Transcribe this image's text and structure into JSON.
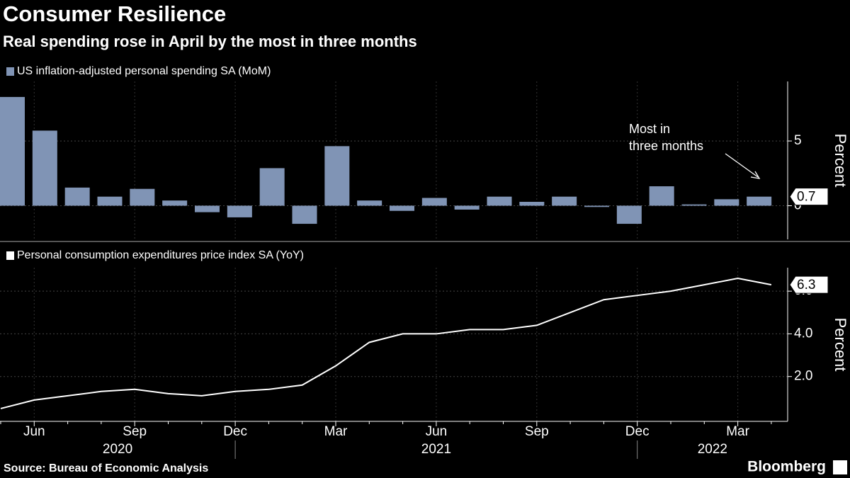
{
  "header": {
    "title": "Consumer Resilience",
    "subtitle": "Real spending rose in April by the most in three months"
  },
  "chart_data": [
    {
      "type": "bar",
      "series": [
        {
          "name": "US inflation-adjusted personal spending SA (MoM)",
          "color": "#8094b5",
          "values": [
            8.4,
            5.8,
            1.4,
            0.7,
            1.3,
            0.4,
            -0.5,
            -0.9,
            2.9,
            -1.4,
            4.6,
            0.4,
            -0.4,
            0.6,
            -0.3,
            0.7,
            0.3,
            0.7,
            -0.1,
            -1.4,
            1.5,
            0.1,
            0.5,
            0.7
          ]
        }
      ],
      "ylim": [
        -2.6,
        9.6
      ],
      "yticks": [
        0,
        5
      ],
      "y_label": "Percent",
      "grid": true,
      "annotation": [
        "Most in",
        "three months"
      ]
    },
    {
      "type": "line",
      "categories": [
        null,
        "Jun",
        null,
        null,
        "Sep",
        null,
        null,
        "Dec",
        null,
        null,
        "Mar",
        null,
        null,
        "Jun",
        null,
        null,
        "Sep",
        null,
        null,
        "Dec",
        null,
        null,
        "Mar",
        null
      ],
      "x_groups": [
        "2020",
        "2021",
        "2022"
      ],
      "series": [
        {
          "name": "Personal consumption expenditures price index SA (YoY)",
          "color": "#ffffff",
          "values": [
            0.5,
            0.9,
            1.1,
            1.3,
            1.4,
            1.2,
            1.1,
            1.3,
            1.4,
            1.6,
            2.5,
            3.6,
            4.0,
            4.0,
            4.2,
            4.2,
            4.4,
            5.0,
            5.6,
            5.8,
            6.0,
            6.3,
            6.6,
            6.3
          ]
        }
      ],
      "ylim": [
        -0.1,
        7.1
      ],
      "yticks": [
        {
          "value": 2,
          "label": "2.0"
        },
        {
          "value": 4,
          "label": "4.0"
        },
        {
          "value": 6,
          "label": "6.0"
        }
      ],
      "y_label": "Percent",
      "grid": true
    }
  ],
  "footer": {
    "source": "Source: Bureau of Economic Analysis",
    "brand": "Bloomberg"
  }
}
